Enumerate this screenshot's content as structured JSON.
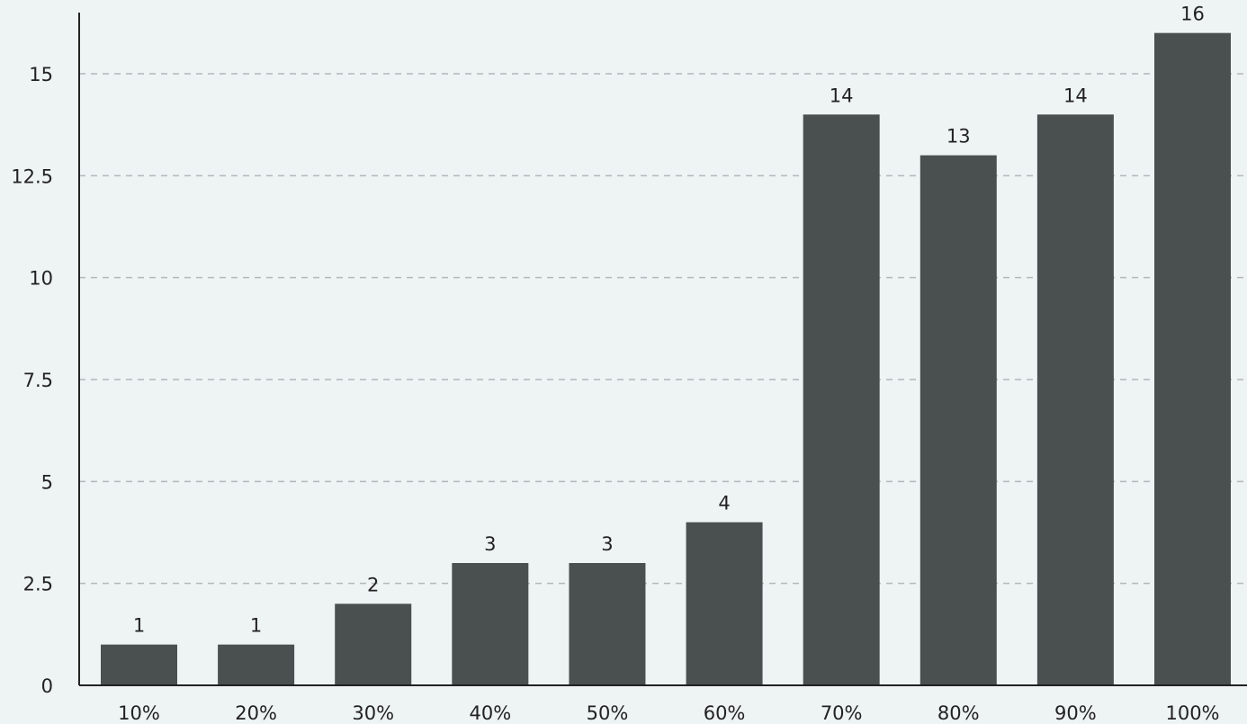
{
  "colors": {
    "background": "#eef3f4",
    "bar": "#4a4f50",
    "grid": "#b4b8b9",
    "axis": "#222222",
    "text": "#222222"
  },
  "chart_data": {
    "type": "bar",
    "title": "",
    "xlabel": "",
    "ylabel": "",
    "categories": [
      "10%",
      "20%",
      "30%",
      "40%",
      "50%",
      "60%",
      "70%",
      "80%",
      "90%",
      "100%"
    ],
    "values": [
      1,
      1,
      2,
      3,
      3,
      4,
      14,
      13,
      14,
      16
    ],
    "data_labels": [
      "1",
      "1",
      "2",
      "3",
      "3",
      "4",
      "14",
      "13",
      "14",
      "16"
    ],
    "ylim": [
      0,
      16.5
    ],
    "yticks": [
      0,
      2.5,
      5,
      7.5,
      10,
      12.5,
      15
    ],
    "ytick_labels": [
      "0",
      "2.5",
      "5",
      "7.5",
      "10",
      "12.5",
      "15"
    ],
    "grid": "horizontal-dashed",
    "legend": "none"
  }
}
